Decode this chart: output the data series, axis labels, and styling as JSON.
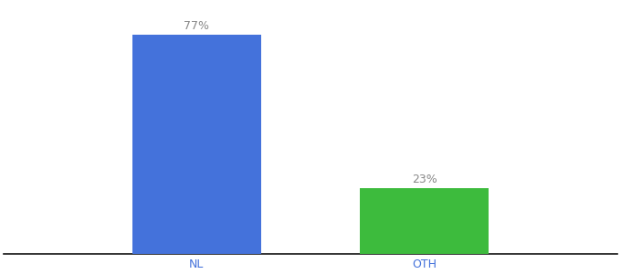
{
  "categories": [
    "NL",
    "OTH"
  ],
  "values": [
    77,
    23
  ],
  "bar_colors": [
    "#4472db",
    "#3dbb3d"
  ],
  "label_texts": [
    "77%",
    "23%"
  ],
  "bar_positions": [
    0.33,
    0.72
  ],
  "bar_width": 0.22,
  "xlim": [
    0.0,
    1.05
  ],
  "ylim": [
    0,
    88
  ],
  "background_color": "#ffffff",
  "tick_color": "#4472db",
  "label_color": "#888888",
  "label_fontsize": 9,
  "axis_label_fontsize": 9,
  "spine_color": "#111111"
}
